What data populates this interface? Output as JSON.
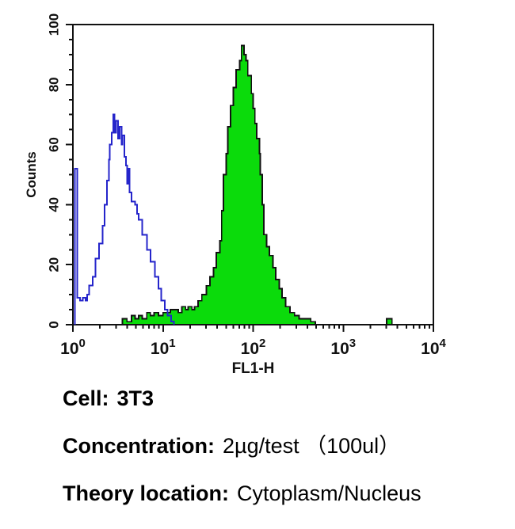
{
  "captions": [
    {
      "label": "Cell:",
      "value": "3T3"
    },
    {
      "label": "Concentration:",
      "value": "2µg/test （100ul）"
    },
    {
      "label": "Theory location:",
      "value": "Cytoplasm/Nucleus"
    }
  ],
  "colors": {
    "axis": "#111111",
    "control_blue": "#2525CB",
    "stained_green_fill": "#0BDB0B",
    "stained_outline": "#111111"
  },
  "chart_data": {
    "type": "area",
    "subtype": "overlaid flow-cytometry histograms",
    "title": "",
    "xlabel": "FL1-H",
    "ylabel": "Counts",
    "x_scale": "log10",
    "xlim_log10": [
      0,
      4
    ],
    "x_tick_exponents": [
      0,
      1,
      2,
      3,
      4
    ],
    "x_tick_base": "10",
    "ylim": [
      0,
      100
    ],
    "y_ticks": [
      0,
      20,
      40,
      60,
      80,
      100
    ],
    "y_minor_step": 5,
    "grid": false,
    "legend_position": "none",
    "series": [
      {
        "name": "control (open blue histogram)",
        "color": "#2525CB",
        "fill": false,
        "peak_x": 2.8,
        "peak_count": 70,
        "points_log10x_count": [
          [
            0.02,
            0
          ],
          [
            0.02,
            52
          ],
          [
            0.05,
            52
          ],
          [
            0.05,
            9
          ],
          [
            0.08,
            8
          ],
          [
            0.11,
            9
          ],
          [
            0.14,
            8
          ],
          [
            0.16,
            10
          ],
          [
            0.18,
            13
          ],
          [
            0.22,
            16
          ],
          [
            0.25,
            22
          ],
          [
            0.29,
            27
          ],
          [
            0.33,
            33
          ],
          [
            0.35,
            40
          ],
          [
            0.38,
            48
          ],
          [
            0.4,
            55
          ],
          [
            0.41,
            60
          ],
          [
            0.43,
            64
          ],
          [
            0.45,
            70
          ],
          [
            0.46,
            64
          ],
          [
            0.48,
            68
          ],
          [
            0.5,
            62
          ],
          [
            0.52,
            66
          ],
          [
            0.54,
            60
          ],
          [
            0.55,
            63
          ],
          [
            0.57,
            56
          ],
          [
            0.59,
            53
          ],
          [
            0.6,
            47
          ],
          [
            0.61,
            52
          ],
          [
            0.63,
            44
          ],
          [
            0.65,
            41
          ],
          [
            0.69,
            40
          ],
          [
            0.71,
            37
          ],
          [
            0.73,
            35
          ],
          [
            0.77,
            30
          ],
          [
            0.82,
            25
          ],
          [
            0.86,
            21
          ],
          [
            0.91,
            16
          ],
          [
            0.95,
            12
          ],
          [
            0.98,
            8
          ],
          [
            1.02,
            5
          ],
          [
            1.05,
            3
          ],
          [
            1.09,
            1
          ],
          [
            1.12,
            0
          ]
        ]
      },
      {
        "name": "antibody stained (filled green histogram)",
        "color": "#0BDB0B",
        "outline": "#111111",
        "fill": true,
        "peak_x": 78,
        "peak_count": 93,
        "points_log10x_count": [
          [
            0.5,
            0
          ],
          [
            0.55,
            2
          ],
          [
            0.6,
            1
          ],
          [
            0.65,
            3
          ],
          [
            0.69,
            2
          ],
          [
            0.73,
            3
          ],
          [
            0.77,
            2
          ],
          [
            0.82,
            4
          ],
          [
            0.86,
            3
          ],
          [
            0.9,
            4
          ],
          [
            0.95,
            3
          ],
          [
            1.0,
            4
          ],
          [
            1.04,
            4
          ],
          [
            1.08,
            5
          ],
          [
            1.13,
            5
          ],
          [
            1.17,
            4
          ],
          [
            1.21,
            6
          ],
          [
            1.25,
            5
          ],
          [
            1.28,
            6
          ],
          [
            1.32,
            5
          ],
          [
            1.35,
            6
          ],
          [
            1.39,
            8
          ],
          [
            1.43,
            10
          ],
          [
            1.48,
            13
          ],
          [
            1.52,
            16
          ],
          [
            1.56,
            19
          ],
          [
            1.59,
            24
          ],
          [
            1.63,
            28
          ],
          [
            1.65,
            38
          ],
          [
            1.67,
            50
          ],
          [
            1.7,
            57
          ],
          [
            1.72,
            66
          ],
          [
            1.75,
            73
          ],
          [
            1.78,
            79
          ],
          [
            1.81,
            85
          ],
          [
            1.85,
            88
          ],
          [
            1.87,
            93
          ],
          [
            1.9,
            90
          ],
          [
            1.92,
            88
          ],
          [
            1.94,
            83
          ],
          [
            1.98,
            77
          ],
          [
            2.0,
            72
          ],
          [
            2.02,
            67
          ],
          [
            2.04,
            62
          ],
          [
            2.07,
            57
          ],
          [
            2.08,
            50
          ],
          [
            2.1,
            40
          ],
          [
            2.12,
            30
          ],
          [
            2.15,
            26
          ],
          [
            2.18,
            23
          ],
          [
            2.22,
            19
          ],
          [
            2.25,
            15
          ],
          [
            2.29,
            12
          ],
          [
            2.32,
            9
          ],
          [
            2.36,
            6
          ],
          [
            2.41,
            4
          ],
          [
            2.46,
            3
          ],
          [
            2.51,
            2
          ],
          [
            2.58,
            2
          ],
          [
            2.64,
            1
          ],
          [
            2.69,
            0
          ],
          [
            3.46,
            0
          ],
          [
            3.48,
            2
          ],
          [
            3.52,
            2
          ],
          [
            3.54,
            0
          ]
        ]
      }
    ]
  }
}
